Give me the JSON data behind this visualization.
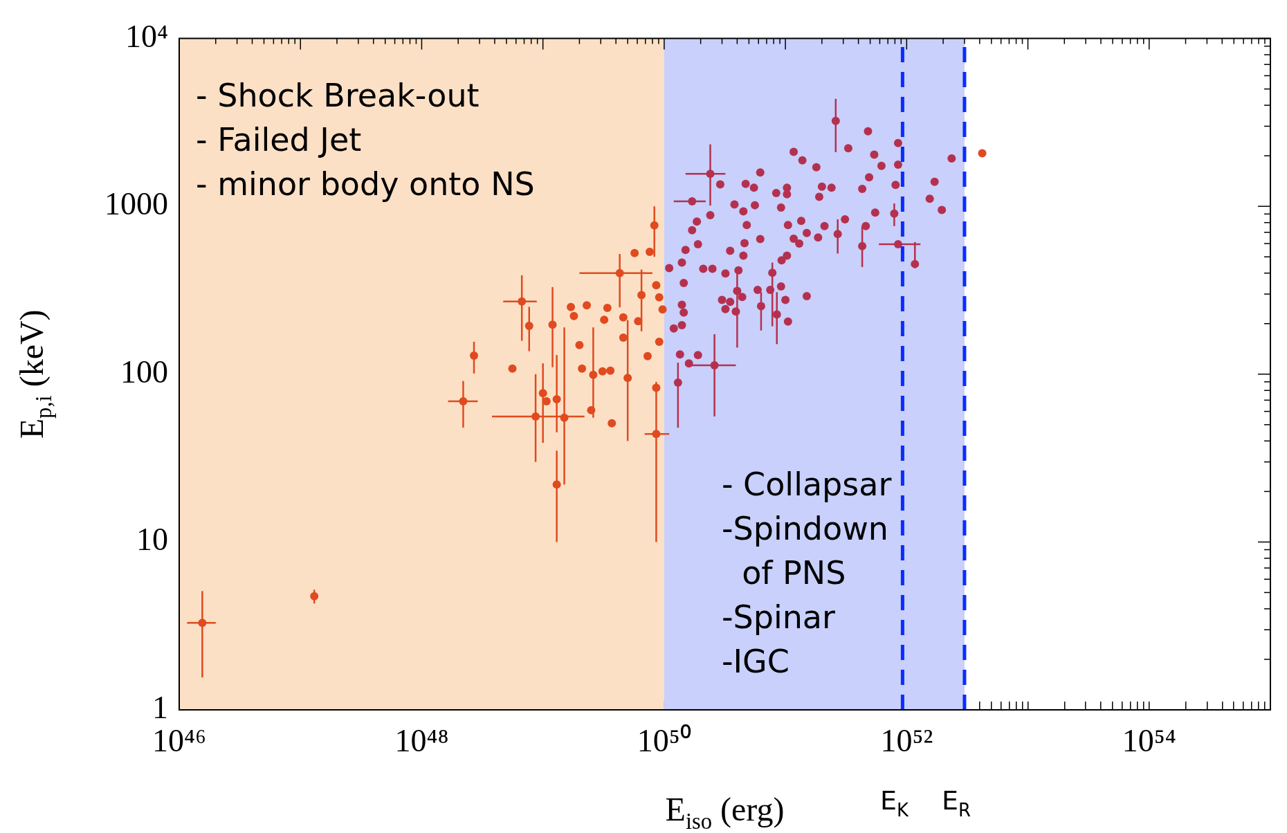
{
  "chart_data": {
    "type": "scatter",
    "xlabel": "E$_{iso}$ (erg)",
    "ylabel": "E$_{p,i}$ (keV)",
    "log": "xy",
    "legend": false,
    "marker": "circle",
    "xlim": [
      1e+46,
      1e+55
    ],
    "ylim": [
      1,
      10000
    ],
    "xticks": [
      {
        "value": 1e+46,
        "label": "10⁴⁶"
      },
      {
        "value": 2e+46,
        "label": null
      },
      {
        "value": 3e+46,
        "label": null
      },
      {
        "value": 4e+46,
        "label": null
      },
      {
        "value": 5e+46,
        "label": null
      },
      {
        "value": 6e+46,
        "label": null
      },
      {
        "value": 7e+46,
        "label": null
      },
      {
        "value": 8e+46,
        "label": null
      },
      {
        "value": 9e+46,
        "label": null
      },
      {
        "value": 1e+47,
        "label": null
      },
      {
        "value": 2e+47,
        "label": null
      },
      {
        "value": 3e+47,
        "label": null
      },
      {
        "value": 4e+47,
        "label": null
      },
      {
        "value": 5e+47,
        "label": null
      },
      {
        "value": 6e+47,
        "label": null
      },
      {
        "value": 7e+47,
        "label": null
      },
      {
        "value": 8e+47,
        "label": null
      },
      {
        "value": 9e+47,
        "label": null
      },
      {
        "value": 1e+48,
        "label": "10⁴⁸"
      },
      {
        "value": 2e+48,
        "label": null
      },
      {
        "value": 3e+48,
        "label": null
      },
      {
        "value": 4e+48,
        "label": null
      },
      {
        "value": 5e+48,
        "label": null
      },
      {
        "value": 6e+48,
        "label": null
      },
      {
        "value": 7e+48,
        "label": null
      },
      {
        "value": 8e+48,
        "label": null
      },
      {
        "value": 9e+48,
        "label": null
      },
      {
        "value": 1e+49,
        "label": null
      },
      {
        "value": 2e+49,
        "label": null
      },
      {
        "value": 3e+49,
        "label": null
      },
      {
        "value": 4e+49,
        "label": null
      },
      {
        "value": 5e+49,
        "label": null
      },
      {
        "value": 6e+49,
        "label": null
      },
      {
        "value": 7e+49,
        "label": null
      },
      {
        "value": 8e+49,
        "label": null
      },
      {
        "value": 9e+49,
        "label": null
      },
      {
        "value": 1e+50,
        "label": "10⁵⁰"
      },
      {
        "value": 2e+50,
        "label": null
      },
      {
        "value": 3e+50,
        "label": null
      },
      {
        "value": 4e+50,
        "label": null
      },
      {
        "value": 5e+50,
        "label": null
      },
      {
        "value": 6e+50,
        "label": null
      },
      {
        "value": 7e+50,
        "label": null
      },
      {
        "value": 8e+50,
        "label": null
      },
      {
        "value": 9e+50,
        "label": null
      },
      {
        "value": 1e+51,
        "label": null
      },
      {
        "value": 2e+51,
        "label": null
      },
      {
        "value": 3e+51,
        "label": null
      },
      {
        "value": 4e+51,
        "label": null
      },
      {
        "value": 5e+51,
        "label": null
      },
      {
        "value": 6e+51,
        "label": null
      },
      {
        "value": 7e+51,
        "label": null
      },
      {
        "value": 8e+51,
        "label": null
      },
      {
        "value": 9e+51,
        "label": null
      },
      {
        "value": 1e+52,
        "label": "10⁵²"
      },
      {
        "value": 2e+52,
        "label": null
      },
      {
        "value": 3e+52,
        "label": null
      },
      {
        "value": 4e+52,
        "label": null
      },
      {
        "value": 5e+52,
        "label": null
      },
      {
        "value": 6e+52,
        "label": null
      },
      {
        "value": 7e+52,
        "label": null
      },
      {
        "value": 8e+52,
        "label": null
      },
      {
        "value": 9e+52,
        "label": null
      },
      {
        "value": 1e+53,
        "label": null
      },
      {
        "value": 2e+53,
        "label": null
      },
      {
        "value": 3e+53,
        "label": null
      },
      {
        "value": 4e+53,
        "label": null
      },
      {
        "value": 5e+53,
        "label": null
      },
      {
        "value": 6e+53,
        "label": null
      },
      {
        "value": 7e+53,
        "label": null
      },
      {
        "value": 8e+53,
        "label": null
      },
      {
        "value": 9e+53,
        "label": null
      },
      {
        "value": 1e+54,
        "label": "10⁵⁴"
      },
      {
        "value": 2e+54,
        "label": null
      },
      {
        "value": 3e+54,
        "label": null
      },
      {
        "value": 4e+54,
        "label": null
      },
      {
        "value": 5e+54,
        "label": null
      },
      {
        "value": 6e+54,
        "label": null
      },
      {
        "value": 7e+54,
        "label": null
      },
      {
        "value": 8e+54,
        "label": null
      },
      {
        "value": 9e+54,
        "label": null
      }
    ],
    "yticks": [
      1,
      {
        "value": 2,
        "label": null
      },
      {
        "value": 3,
        "label": null
      },
      {
        "value": 4,
        "label": null
      },
      {
        "value": 5,
        "label": null
      },
      {
        "value": 6,
        "label": null
      },
      {
        "value": 7,
        "label": null
      },
      {
        "value": 8,
        "label": null
      },
      {
        "value": 9,
        "label": null
      },
      10,
      {
        "value": 20,
        "label": null
      },
      {
        "value": 30,
        "label": null
      },
      {
        "value": 40,
        "label": null
      },
      {
        "value": 50,
        "label": null
      },
      {
        "value": 60,
        "label": null
      },
      {
        "value": 70,
        "label": null
      },
      {
        "value": 80,
        "label": null
      },
      {
        "value": 90,
        "label": null
      },
      100,
      {
        "value": 200,
        "label": null
      },
      {
        "value": 300,
        "label": null
      },
      {
        "value": 400,
        "label": null
      },
      {
        "value": 500,
        "label": null
      },
      {
        "value": 600,
        "label": null
      },
      {
        "value": 700,
        "label": null
      },
      {
        "value": 800,
        "label": null
      },
      {
        "value": 900,
        "label": null
      },
      1000,
      {
        "value": 2000,
        "label": null
      },
      {
        "value": 3000,
        "label": null
      },
      {
        "value": 4000,
        "label": null
      },
      {
        "value": 5000,
        "label": null
      },
      {
        "value": 6000,
        "label": null
      },
      {
        "value": 7000,
        "label": null
      },
      {
        "value": 8000,
        "label": null
      },
      {
        "value": 9000,
        "label": null
      },
      {
        "value": 10000,
        "label": "10⁴"
      }
    ],
    "bands": [
      {
        "axis": "x",
        "from": 1e+46,
        "to": 1e+50,
        "color": "#fce0c6",
        "label": "- Shock Break-out\n- Failed Jet\n- minor body onto NS"
      },
      {
        "axis": "x",
        "from": 1e+50,
        "to": 3e+52,
        "color": "#c8d0fb",
        "label": "- Collapsar\n-Spindown\n  of PNS\n-Spinar\n-IGC"
      }
    ],
    "ref_lines": [
      {
        "axis": "x",
        "value": 9.25e+51,
        "label": "E$_{K}$",
        "color": "#0a2cff",
        "line_style": "dashed"
      },
      {
        "axis": "x",
        "value": 3e+52,
        "label": "E$_{R}$",
        "color": "#0a2cff",
        "line_style": "dashed"
      }
    ],
    "series": [
      {
        "color": "#e04a1f",
        "x": [
          1.55e+46,
          1.3e+47,
          2.2e+48,
          2.7e+48,
          5.6e+48,
          6.7e+48,
          7.7e+48,
          8.7e+48,
          1e+49,
          1.07e+49,
          1.2e+49,
          1.3e+49,
          1.3e+49,
          1.5e+49,
          1.7e+49,
          1.8e+49,
          2e+49,
          2.1e+49,
          2.3e+49,
          2.5e+49,
          2.6e+49,
          3.2e+49,
          3.1e+49,
          3.4e+49,
          3.6e+49,
          3.7e+49,
          4.3e+49,
          4.6e+49,
          4.6e+49,
          5e+49,
          5.7e+49,
          6.1e+49,
          6.5e+49,
          7.3e+49,
          7.6e+49,
          8.3e+49,
          8.6e+49,
          8.6e+49,
          8.6e+49,
          9.1e+49,
          9.1e+49,
          9.7e+49,
          4.2e+52
        ],
        "values": [
          3.3,
          4.75,
          69,
          129,
          108,
          271,
          194,
          56,
          77,
          69,
          197,
          71,
          22,
          55,
          251,
          222,
          149,
          108,
          257,
          61,
          99,
          211,
          104,
          248,
          105,
          51,
          400,
          218,
          165,
          95,
          527,
          207,
          296,
          128,
          535,
          770,
          339,
          44,
          83,
          156,
          287,
          243,
          2070
        ],
        "errors": [
          [
            1.56,
            5.1
          ],
          [
            4.3,
            5.2
          ],
          [
            48,
            91
          ],
          [
            101,
            156
          ],
          null,
          [
            158,
            388
          ],
          [
            137,
            252
          ],
          [
            30,
            100
          ],
          [
            39,
            116
          ],
          null,
          [
            110,
            330
          ],
          [
            45,
            130
          ],
          [
            10,
            35
          ],
          [
            22,
            190
          ],
          null,
          null,
          null,
          null,
          null,
          null,
          [
            55,
            190
          ],
          null,
          null,
          null,
          null,
          null,
          [
            250,
            520
          ],
          null,
          null,
          [
            40,
            210
          ],
          null,
          null,
          [
            180,
            420
          ],
          null,
          null,
          [
            500,
            1000
          ],
          null,
          [
            10,
            90
          ],
          null,
          null,
          null,
          null,
          null
        ],
        "xerrors": [
          [
            1.16e+46,
            2e+46
          ],
          null,
          [
            1.65e+48,
            2.9e+48
          ],
          null,
          null,
          [
            4.7e+48,
            8.9e+48
          ],
          null,
          [
            3.8e+48,
            2.2e+49
          ],
          null,
          null,
          null,
          null,
          null,
          null,
          null,
          null,
          null,
          null,
          null,
          null,
          null,
          null,
          null,
          null,
          null,
          null,
          [
            2e+49,
            8e+49
          ],
          null,
          null,
          null,
          null,
          null,
          null,
          null,
          null,
          null,
          null,
          [
            6.9e+49,
            1.1e+50
          ],
          null,
          null,
          null,
          null,
          null
        ]
      },
      {
        "color": "#b5304f",
        "x": [
          2.6e+51,
          4.8e+51,
          3.3e+51,
          8.5e+51,
          5.4e+51,
          6.2e+51,
          8.5e+51,
          2.35e+52,
          1.17e+51,
          1.38e+51,
          1.8e+51,
          4.9e+51,
          8.1e+51,
          4.3e+51,
          1.7e+52,
          1.55e+52,
          1.95e+52,
          1.17e+52,
          8.5e+51,
          7.9e+51,
          5.5e+51,
          4.3e+51,
          4.6e+51,
          3.1e+51,
          2.7e+51,
          2.4e+51,
          2e+51,
          1.9e+51,
          2.1e+51,
          1.86e+51,
          1.5e+51,
          1.35e+51,
          1.3e+51,
          1.17e+51,
          1.05e+51,
          1.03e+51,
          1.03e+51,
          8.4e+50,
          9.2e+50,
          1.03e+51,
          9.3e+50,
          7.8e+50,
          9.2e+50,
          1e+51,
          8.5e+50,
          1.05e+51,
          1.5e+51,
          6.3e+50,
          5.9e+50,
          7.5e+50,
          6.2e+50,
          4.8e+50,
          5.6e+50,
          5.5e+50,
          6.2e+50,
          4.7e+50,
          3.8e+50,
          4.5e+50,
          4.6e+50,
          4.5e+50,
          3.5e+50,
          4.1e+50,
          3.2e+50,
          4e+50,
          4.4e+50,
          3e+50,
          3.5e+50,
          3.2e+50,
          3.9e+50,
          2.9e+50,
          2.4e+50,
          2.4e+50,
          1.7e+50,
          1.86e+50,
          1.7e+50,
          1.9e+50,
          1.5e+50,
          2.1e+50,
          2.5e+50,
          1.4e+50,
          1.1e+50,
          1.45e+50,
          1.4e+50,
          1.45e+50,
          1.4e+50,
          1.2e+50,
          1.35e+50,
          1.6e+50,
          1.9e+50,
          2.6e+50,
          1.3e+50
        ],
        "values": [
          3230,
          2800,
          2220,
          2380,
          2030,
          1740,
          1770,
          1930,
          2110,
          1880,
          1710,
          1490,
          1340,
          1270,
          1400,
          1110,
          950,
          453,
          594,
          905,
          918,
          579,
          762,
          836,
          684,
          1290,
          1310,
          1140,
          762,
          652,
          693,
          818,
          600,
          641,
          774,
          1290,
          1180,
          1200,
          984,
          508,
          477,
          402,
          333,
          277,
          227,
          206,
          292,
          254,
          318,
          318,
          638,
          774,
          1015,
          1290,
          1590,
          1360,
          1025,
          933,
          603,
          508,
          543,
          415,
          398,
          313,
          288,
          277,
          270,
          244,
          236,
          1350,
          1560,
          885,
          1070,
          811,
          720,
          594,
          550,
          424,
          424,
          462,
          428,
          349,
          259,
          233,
          196,
          187,
          131,
          116,
          130,
          113,
          89
        ],
        "errors": [
          [
            2100,
            4370
          ],
          null,
          null,
          null,
          null,
          null,
          null,
          null,
          null,
          null,
          null,
          null,
          null,
          null,
          null,
          null,
          null,
          [
            428,
            612
          ],
          null,
          [
            762,
            1040
          ],
          null,
          [
            435,
            762
          ],
          null,
          null,
          [
            523,
            836
          ],
          null,
          null,
          null,
          null,
          null,
          null,
          null,
          null,
          null,
          null,
          null,
          null,
          null,
          null,
          null,
          null,
          [
            193,
            462
          ],
          null,
          null,
          [
            151,
            308
          ],
          null,
          null,
          [
            182,
            308
          ],
          null,
          null,
          null,
          null,
          null,
          null,
          null,
          null,
          null,
          null,
          null,
          null,
          null,
          null,
          null,
          [
            144,
            395
          ],
          null,
          null,
          null,
          null,
          null,
          null,
          [
            1010,
            2340
          ],
          null,
          null,
          null,
          null,
          null,
          null,
          null,
          null,
          null,
          null,
          null,
          null,
          null,
          null,
          null,
          null,
          null,
          null,
          [
            56,
            173
          ],
          [
            48,
            117
          ]
        ],
        "xerrors": [
          null,
          null,
          null,
          null,
          null,
          null,
          null,
          null,
          null,
          null,
          null,
          null,
          null,
          null,
          null,
          null,
          null,
          null,
          [
            5.9e+51,
            1.3e+52
          ],
          null,
          null,
          null,
          null,
          null,
          null,
          null,
          null,
          null,
          null,
          null,
          null,
          null,
          null,
          null,
          null,
          null,
          null,
          null,
          null,
          null,
          null,
          null,
          null,
          null,
          null,
          null,
          null,
          null,
          null,
          null,
          null,
          null,
          null,
          null,
          null,
          null,
          null,
          null,
          null,
          null,
          null,
          null,
          null,
          null,
          null,
          null,
          null,
          null,
          null,
          null,
          [
            1.5e+50,
            3.2e+50
          ],
          null,
          [
            1.2e+50,
            2.2e+50
          ],
          null,
          null,
          null,
          null,
          null,
          null,
          null,
          null,
          null,
          null,
          null,
          null,
          null,
          null,
          null,
          null,
          [
            1.6e+50,
            3.9e+50
          ],
          null
        ]
      }
    ]
  }
}
